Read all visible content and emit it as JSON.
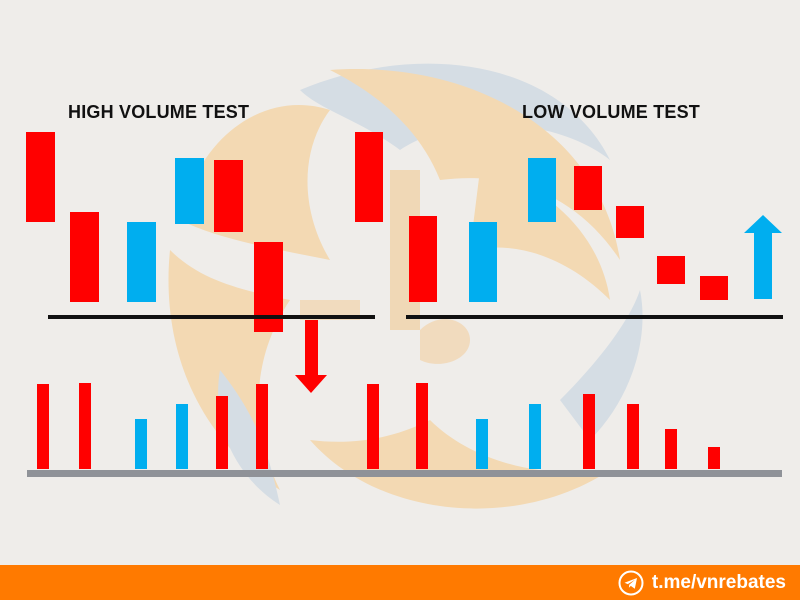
{
  "colors": {
    "background": "#efedea",
    "bearish": "#ff0000",
    "bullish": "#00aeef",
    "baseline": "#111111",
    "volume_axis": "#8f9298",
    "footer": "#ff7a00",
    "watermark_orange": "#f3d9b3",
    "watermark_blue": "#d5dde4"
  },
  "titles": {
    "left": "HIGH VOLUME TEST",
    "right": "LOW VOLUME TEST"
  },
  "left_panel": {
    "candles": [
      {
        "color": "red",
        "top": 10,
        "bottom": 5.5
      },
      {
        "color": "red",
        "top": 6,
        "bottom": 1.5
      },
      {
        "color": "blue",
        "top": 5.5,
        "bottom": 1.5
      },
      {
        "color": "blue",
        "top": 8.7,
        "bottom": 5.4
      },
      {
        "color": "red",
        "top": 8.6,
        "bottom": 5.0
      },
      {
        "color": "red",
        "top": 4.5,
        "bottom": 0
      }
    ],
    "volumes": [
      8.5,
      8.6,
      5.0,
      6.5,
      7.3,
      8.5
    ],
    "arrow": "down"
  },
  "right_panel": {
    "candles": [
      {
        "color": "red",
        "top": 10,
        "bottom": 5.5
      },
      {
        "color": "red",
        "top": 5.8,
        "bottom": 1.5
      },
      {
        "color": "blue",
        "top": 5.5,
        "bottom": 1.5
      },
      {
        "color": "blue",
        "top": 8.7,
        "bottom": 5.5
      },
      {
        "color": "red",
        "top": 8.3,
        "bottom": 6.1
      },
      {
        "color": "red",
        "top": 6.3,
        "bottom": 4.7
      },
      {
        "color": "red",
        "top": 3.8,
        "bottom": 2.4
      },
      {
        "color": "red",
        "top": 2.8,
        "bottom": 1.6
      }
    ],
    "volumes": [
      8.5,
      8.6,
      5.0,
      6.5,
      7.5,
      6.5,
      4.0,
      2.2
    ],
    "arrow": "up"
  },
  "footer": {
    "icon": "telegram-icon",
    "handle": "t.me/vnrebates"
  }
}
